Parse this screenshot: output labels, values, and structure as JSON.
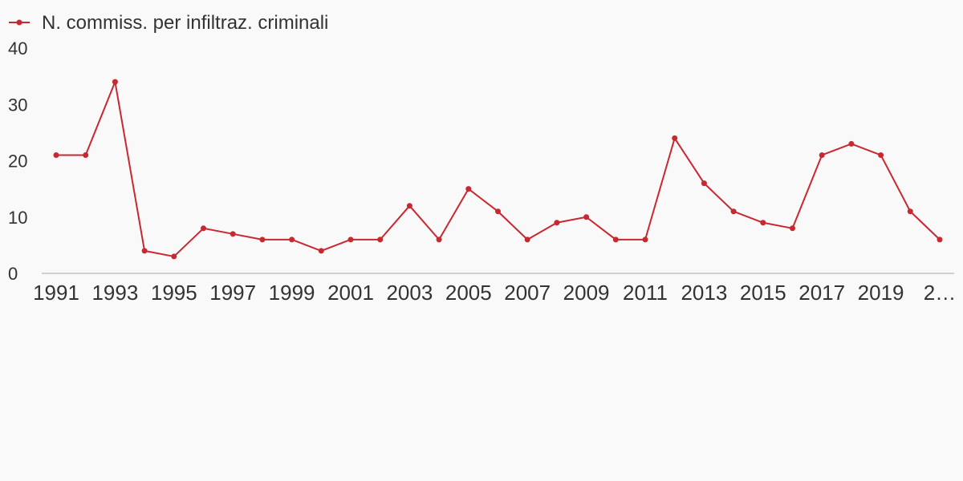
{
  "chart_data": {
    "type": "line",
    "title": "",
    "xlabel": "",
    "ylabel": "",
    "ylim": [
      0,
      40
    ],
    "yticks": [
      "0",
      "10",
      "20",
      "30",
      "40"
    ],
    "x_tick_labels": [
      "1991",
      "1993",
      "1995",
      "1997",
      "1999",
      "2001",
      "2003",
      "2005",
      "2007",
      "2009",
      "2011",
      "2013",
      "2015",
      "2017",
      "2019",
      "2…"
    ],
    "x": [
      1991,
      1992,
      1993,
      1994,
      1995,
      1996,
      1997,
      1998,
      1999,
      2000,
      2001,
      2002,
      2003,
      2004,
      2005,
      2006,
      2007,
      2008,
      2009,
      2010,
      2011,
      2012,
      2013,
      2014,
      2015,
      2016,
      2017,
      2018,
      2019,
      2020,
      2021
    ],
    "series": [
      {
        "name": "N. commiss. per infiltraz. criminali",
        "color": "#c8282f",
        "values": [
          21,
          21,
          34,
          4,
          3,
          8,
          7,
          6,
          6,
          4,
          6,
          6,
          12,
          6,
          15,
          11,
          6,
          9,
          10,
          6,
          6,
          24,
          16,
          11,
          9,
          8,
          21,
          23,
          21,
          11,
          6
        ]
      }
    ],
    "grid": false,
    "legend": "top-left",
    "axis_color": "#d0d0d0"
  }
}
